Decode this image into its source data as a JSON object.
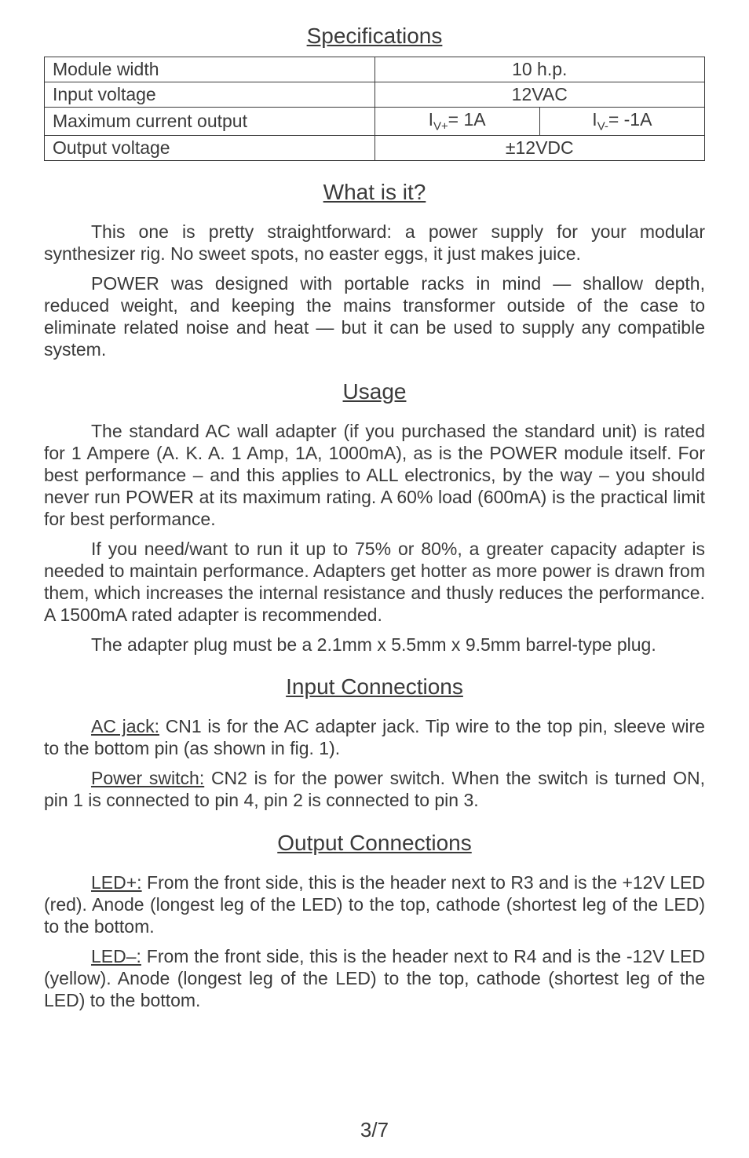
{
  "headings": {
    "specs": "Specifications",
    "what": "What is it?",
    "usage": "Usage",
    "input": "Input Connections",
    "output": "Output Connections"
  },
  "table": {
    "r1c1": "Module width",
    "r1c2": "10 h.p.",
    "r2c1": "Input voltage",
    "r2c2": "12VAC",
    "r3c1": "Maximum current output",
    "r3c2": "I",
    "r3c2sub": "V+",
    "r3c2b": "= 1A",
    "r3c3": "I",
    "r3c3sub": "V-",
    "r3c3b": "= -1A",
    "r4c1": "Output voltage",
    "r4c2": "±12VDC"
  },
  "what_p1": "This one is pretty straightforward: a power supply for your modular synthesizer rig. No sweet spots, no easter eggs, it just  makes juice.",
  "what_p2": "POWER was designed with portable racks in mind — shallow depth, reduced weight, and keeping the mains transformer outside of the case to eliminate related noise and heat — but it can be used to supply any compatible system.",
  "usage_p1": "The standard AC wall adapter (if you purchased the standard unit) is rated for 1 Ampere (A. K. A. 1 Amp, 1A, 1000mA), as is the POWER module itself. For best performance – and this applies to ALL electronics, by the way – you should never run POWER at its maximum rating. A 60% load (600mA) is the practical limit for best performance.",
  "usage_p2": "If you need/want to run it up to 75% or 80%, a greater capacity adapter is needed to maintain performance. Adapters get hotter as more power is drawn from them, which increases the internal resistance and thusly reduces the performance. A 1500mA rated adapter is recommended.",
  "usage_p3": "The adapter plug must be a 2.1mm x 5.5mm x 9.5mm barrel-type plug.",
  "input_p1_l": "AC jack:",
  "input_p1_t": " CN1 is for the AC adapter jack. Tip wire to the top pin, sleeve wire to the bottom pin (as shown in fig. 1).",
  "input_p2_l": "Power switch:",
  "input_p2_t": " CN2 is for the power switch. When the switch is turned ON, pin 1 is connected to pin 4,  pin 2 is connected to pin 3.",
  "output_p1_l": "LED+:",
  "output_p1_t": " From the front side, this is the header next to R3 and is the +12V LED (red). Anode (longest leg of the LED) to the top, cathode (shortest leg of the LED) to the bottom.",
  "output_p2_l": "LED–:",
  "output_p2_t": " From the front side, this is the header next to R4 and is the -12V LED (yellow). Anode (longest leg of the LED) to the top, cathode (shortest leg of the LED) to the bottom.",
  "page": "3/7"
}
